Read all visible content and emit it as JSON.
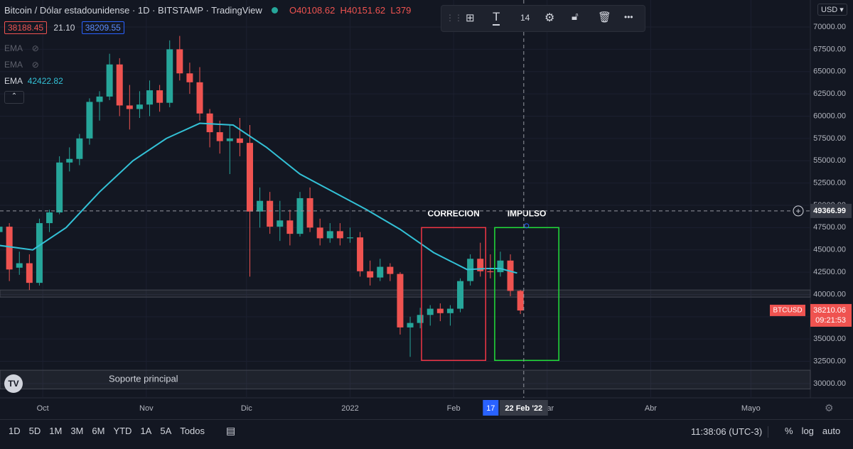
{
  "header": {
    "symbol": "Bitcoin / Dólar estadounidense · 1D · BITSTAMP · TradingView",
    "ohlc": [
      "O40108.62",
      "H40151.62",
      "L379"
    ]
  },
  "quote": {
    "bid": "38188.45",
    "spread": "21.10",
    "ask": "38209.55"
  },
  "indicators": [
    {
      "name": "EMA"
    },
    {
      "name": "EMA"
    },
    {
      "name": "EMA",
      "value": "42422.82"
    }
  ],
  "toolbar": {
    "font_size": "14"
  },
  "currency": "USD",
  "chart_data": {
    "type": "candlestick",
    "x": [
      -13,
      -10,
      -7,
      -4,
      -1,
      2,
      5,
      8,
      11,
      14,
      17,
      20,
      23,
      26,
      29,
      32,
      35,
      38,
      41,
      44,
      47,
      50,
      53,
      56,
      59,
      62,
      65,
      68,
      71,
      74,
      77,
      80,
      83,
      86,
      89,
      92,
      95,
      98,
      101,
      104,
      107,
      110,
      113,
      116,
      119,
      122,
      125,
      128,
      131,
      134,
      137,
      140,
      143
    ],
    "open": [
      47000,
      47600,
      43000,
      43500,
      41300,
      48000,
      49200,
      54800,
      55200,
      57500,
      61600,
      62200,
      65800,
      61200,
      60800,
      61300,
      62900,
      61500,
      67500,
      64800,
      63800,
      60300,
      58200,
      57200,
      57500,
      57000,
      49300,
      50500,
      47600,
      48300,
      46800,
      50800,
      47500,
      46300,
      47100,
      46300,
      46400,
      42600,
      41900,
      43100,
      42300,
      36300,
      36800,
      37700,
      38400,
      37900,
      38400,
      41500,
      44000,
      42600,
      42500,
      43800,
      40400
    ],
    "high": [
      48500,
      48000,
      44800,
      44500,
      48500,
      49500,
      55500,
      56500,
      58000,
      62000,
      62800,
      67000,
      66500,
      63500,
      62800,
      64000,
      63500,
      68500,
      69000,
      66000,
      65500,
      60800,
      59500,
      59000,
      59800,
      59000,
      52000,
      51500,
      50500,
      49500,
      51500,
      52000,
      48500,
      48000,
      48000,
      47500,
      47000,
      43800,
      44000,
      43500,
      42500,
      37500,
      38500,
      38800,
      39000,
      38800,
      41800,
      44500,
      45800,
      44500,
      44800,
      44500,
      40500
    ],
    "low": [
      46500,
      41500,
      42200,
      40500,
      41000,
      47000,
      49000,
      53800,
      54500,
      56800,
      59500,
      61800,
      60000,
      58500,
      59800,
      60000,
      60500,
      61000,
      64000,
      62500,
      59500,
      56500,
      55800,
      53500,
      55500,
      42000,
      47500,
      46800,
      46000,
      45500,
      46500,
      47000,
      45500,
      45800,
      45500,
      45800,
      42000,
      41000,
      41500,
      41500,
      35500,
      33000,
      36200,
      36500,
      37000,
      36500,
      38000,
      41000,
      42000,
      41800,
      42000,
      39800,
      37800
    ],
    "close": [
      47600,
      42800,
      43500,
      41300,
      48000,
      49200,
      54800,
      55200,
      57500,
      61600,
      62200,
      65800,
      61200,
      60800,
      61300,
      62900,
      61500,
      67500,
      64800,
      63800,
      60300,
      58200,
      57200,
      57500,
      57000,
      49300,
      50500,
      47600,
      48300,
      46800,
      50800,
      47500,
      46300,
      47100,
      46300,
      46400,
      42600,
      41900,
      43100,
      42300,
      36300,
      36800,
      37700,
      38400,
      37900,
      38400,
      41500,
      44000,
      42600,
      42500,
      43800,
      40400,
      38200
    ],
    "up_color": "#26a69a",
    "down_color": "#ef5350",
    "ema": {
      "color": "#33c1d6",
      "x": [
        -13,
        -3,
        7,
        17,
        27,
        37,
        47,
        57,
        67,
        77,
        87,
        97,
        107,
        117,
        127,
        133,
        137,
        142
      ],
      "values": [
        45500,
        45000,
        47500,
        51500,
        55000,
        57500,
        59200,
        59000,
        56500,
        53500,
        51500,
        49500,
        47300,
        44700,
        42800,
        42900,
        42900,
        42400
      ]
    },
    "xlim": [
      -12.8,
      229.8
    ],
    "ylim": [
      28400,
      73030
    ],
    "xticks": [
      {
        "value": 0,
        "label": "Oct"
      },
      {
        "value": 31,
        "label": "Nov"
      },
      {
        "value": 61,
        "label": "Dic"
      },
      {
        "value": 92,
        "label": "2022"
      },
      {
        "value": 123,
        "label": "Feb"
      },
      {
        "value": 151,
        "label": "Mar"
      },
      {
        "value": 182,
        "label": "Abr"
      },
      {
        "value": 212,
        "label": "Mayo"
      }
    ],
    "yticks": [
      {
        "value": 30000,
        "label": "30000.00"
      },
      {
        "value": 32500,
        "label": "32500.00"
      },
      {
        "value": 35000,
        "label": "35000.00"
      },
      {
        "value": 37500,
        "label": "37500.00"
      },
      {
        "value": 40000,
        "label": "40000.00"
      },
      {
        "value": 42500,
        "label": "42500.00"
      },
      {
        "value": 45000,
        "label": "45000.00"
      },
      {
        "value": 47500,
        "label": "47500.00"
      },
      {
        "value": 50000,
        "label": "50000.00"
      },
      {
        "value": 52500,
        "label": "52500.00"
      },
      {
        "value": 55000,
        "label": "55000.00"
      },
      {
        "value": 57500,
        "label": "57500.00"
      },
      {
        "value": 60000,
        "label": "60000.00"
      },
      {
        "value": 62500,
        "label": "62500.00"
      },
      {
        "value": 65000,
        "label": "65000.00"
      },
      {
        "value": 67500,
        "label": "67500.00"
      },
      {
        "value": 70000,
        "label": "70000.00"
      }
    ],
    "grid": true,
    "bands": [
      {
        "lower": 39700,
        "upper": 40500
      },
      {
        "lower": 29400,
        "upper": 31500,
        "label": "Soporte principal"
      }
    ],
    "boxes": [
      {
        "label": "CORRECION",
        "color": "#f23645",
        "x": [
          113.4,
          132.6
        ],
        "y": [
          32600,
          47500
        ]
      },
      {
        "label": "IMPULSO",
        "color": "#22e03a",
        "x": [
          135.3,
          154.5
        ],
        "y": [
          32600,
          47500
        ]
      }
    ],
    "crosshair": {
      "price": 49366.99,
      "date": {
        "value": 144,
        "label": "22 Feb '22"
      },
      "marker": {
        "value": 139,
        "label": "17"
      }
    },
    "last_price": {
      "symbol": "BTCUSD",
      "value": 38210.06,
      "countdown": "09:21:53"
    }
  },
  "range_buttons": [
    "1D",
    "5D",
    "1M",
    "3M",
    "6M",
    "YTD",
    "1A",
    "5A",
    "Todos"
  ],
  "clock": "11:38:06 (UTC-3)",
  "scale_buttons": [
    "%",
    "log",
    "auto"
  ]
}
